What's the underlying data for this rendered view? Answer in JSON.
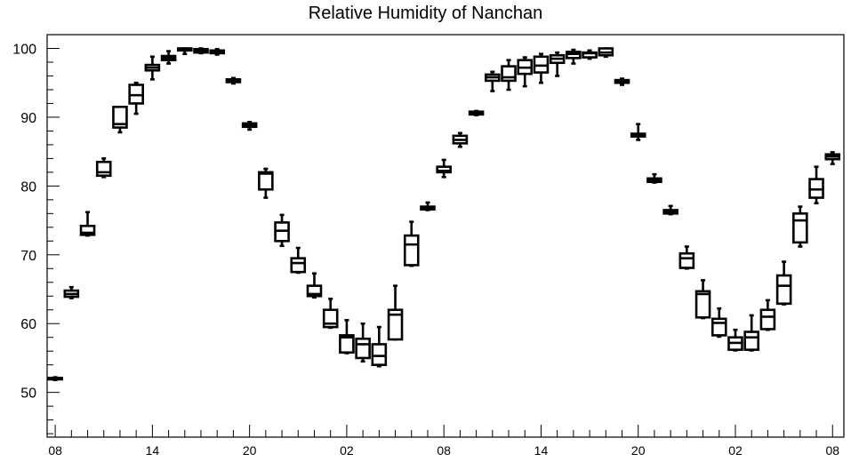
{
  "chart_data": {
    "type": "box",
    "title": "Relative Humidity of Nanchan",
    "xlabel": "",
    "ylabel": "",
    "ylim": [
      43.5,
      102
    ],
    "yticks": [
      50,
      60,
      70,
      80,
      90,
      100
    ],
    "xticks": [
      {
        "x": 0,
        "label": "08"
      },
      {
        "x": 6,
        "label": "14"
      },
      {
        "x": 12,
        "label": "20"
      },
      {
        "x": 18,
        "label": "02"
      },
      {
        "x": 24,
        "label": "08"
      },
      {
        "x": 30,
        "label": "14"
      },
      {
        "x": 36,
        "label": "20"
      },
      {
        "x": 42,
        "label": "02"
      },
      {
        "x": 48,
        "label": "08"
      }
    ],
    "xrange": [
      -0.5,
      48.7
    ],
    "grid": false,
    "boxes": [
      {
        "x": 0,
        "min": 51.8,
        "q1": 51.9,
        "median": 52.0,
        "q3": 52.1,
        "max": 52.2
      },
      {
        "x": 1,
        "min": 63.7,
        "q1": 63.9,
        "median": 64.3,
        "q3": 64.8,
        "max": 65.3
      },
      {
        "x": 2,
        "min": 72.8,
        "q1": 72.9,
        "median": 73.2,
        "q3": 74.2,
        "max": 76.2
      },
      {
        "x": 3,
        "min": 81.3,
        "q1": 81.5,
        "median": 82.0,
        "q3": 83.5,
        "max": 84.0
      },
      {
        "x": 4,
        "min": 87.8,
        "q1": 88.5,
        "median": 89.0,
        "q3": 91.5,
        "max": 91.5
      },
      {
        "x": 5,
        "min": 90.5,
        "q1": 92.0,
        "median": 93.2,
        "q3": 94.7,
        "max": 95.0
      },
      {
        "x": 6,
        "min": 95.5,
        "q1": 96.8,
        "median": 97.2,
        "q3": 97.6,
        "max": 98.8
      },
      {
        "x": 7,
        "min": 97.8,
        "q1": 98.3,
        "median": 98.6,
        "q3": 98.9,
        "max": 99.6
      },
      {
        "x": 8,
        "min": 99.2,
        "q1": 99.7,
        "median": 99.9,
        "q3": 100.0,
        "max": 100.0
      },
      {
        "x": 9,
        "min": 99.3,
        "q1": 99.4,
        "median": 99.6,
        "q3": 99.9,
        "max": 100.0
      },
      {
        "x": 10,
        "min": 99.1,
        "q1": 99.3,
        "median": 99.5,
        "q3": 99.7,
        "max": 99.9
      },
      {
        "x": 11,
        "min": 94.9,
        "q1": 95.1,
        "median": 95.3,
        "q3": 95.5,
        "max": 95.7
      },
      {
        "x": 12,
        "min": 88.2,
        "q1": 88.6,
        "median": 88.9,
        "q3": 89.1,
        "max": 89.3
      },
      {
        "x": 13,
        "min": 78.3,
        "q1": 79.5,
        "median": 81.8,
        "q3": 82.0,
        "max": 82.5
      },
      {
        "x": 14,
        "min": 71.3,
        "q1": 72.0,
        "median": 73.5,
        "q3": 74.7,
        "max": 75.8
      },
      {
        "x": 15,
        "min": 67.4,
        "q1": 67.5,
        "median": 68.8,
        "q3": 69.5,
        "max": 71.0
      },
      {
        "x": 16,
        "min": 63.8,
        "q1": 64.0,
        "median": 64.3,
        "q3": 65.5,
        "max": 67.3
      },
      {
        "x": 17,
        "min": 59.4,
        "q1": 59.5,
        "median": 60.0,
        "q3": 62.0,
        "max": 63.6
      },
      {
        "x": 18,
        "min": 55.7,
        "q1": 55.8,
        "median": 58.0,
        "q3": 58.3,
        "max": 60.5
      },
      {
        "x": 19,
        "min": 54.5,
        "q1": 55.0,
        "median": 57.0,
        "q3": 57.8,
        "max": 60.0
      },
      {
        "x": 20,
        "min": 53.8,
        "q1": 54.0,
        "median": 55.3,
        "q3": 57.0,
        "max": 59.5
      },
      {
        "x": 21,
        "min": 57.7,
        "q1": 57.7,
        "median": 61.3,
        "q3": 62.0,
        "max": 65.5
      },
      {
        "x": 22,
        "min": 68.4,
        "q1": 68.5,
        "median": 71.5,
        "q3": 72.8,
        "max": 74.8
      },
      {
        "x": 23,
        "min": 76.5,
        "q1": 76.6,
        "median": 76.8,
        "q3": 77.0,
        "max": 77.6
      },
      {
        "x": 24,
        "min": 81.3,
        "q1": 82.0,
        "median": 82.2,
        "q3": 82.8,
        "max": 83.8
      },
      {
        "x": 25,
        "min": 85.7,
        "q1": 86.2,
        "median": 86.7,
        "q3": 87.3,
        "max": 87.7
      },
      {
        "x": 26,
        "min": 90.3,
        "q1": 90.4,
        "median": 90.6,
        "q3": 90.8,
        "max": 90.9
      },
      {
        "x": 27,
        "min": 93.8,
        "q1": 95.3,
        "median": 95.8,
        "q3": 96.2,
        "max": 96.6
      },
      {
        "x": 28,
        "min": 94.0,
        "q1": 95.3,
        "median": 95.8,
        "q3": 97.4,
        "max": 98.3
      },
      {
        "x": 29,
        "min": 94.5,
        "q1": 96.3,
        "median": 97.2,
        "q3": 98.3,
        "max": 98.7
      },
      {
        "x": 30,
        "min": 95.0,
        "q1": 96.5,
        "median": 97.5,
        "q3": 98.8,
        "max": 99.2
      },
      {
        "x": 31,
        "min": 96.0,
        "q1": 97.9,
        "median": 98.5,
        "q3": 99.0,
        "max": 99.4
      },
      {
        "x": 32,
        "min": 97.8,
        "q1": 98.6,
        "median": 99.2,
        "q3": 99.5,
        "max": 99.8
      },
      {
        "x": 33,
        "min": 98.5,
        "q1": 98.7,
        "median": 99.3,
        "q3": 99.4,
        "max": 99.7
      },
      {
        "x": 34,
        "min": 98.8,
        "q1": 99.0,
        "median": 99.4,
        "q3": 100.0,
        "max": 100.0
      },
      {
        "x": 35,
        "min": 94.7,
        "q1": 95.0,
        "median": 95.2,
        "q3": 95.4,
        "max": 95.6
      },
      {
        "x": 36,
        "min": 86.7,
        "q1": 87.2,
        "median": 87.5,
        "q3": 87.6,
        "max": 89.0
      },
      {
        "x": 37,
        "min": 80.5,
        "q1": 80.6,
        "median": 80.9,
        "q3": 81.1,
        "max": 81.7
      },
      {
        "x": 38,
        "min": 75.9,
        "q1": 76.0,
        "median": 76.2,
        "q3": 76.5,
        "max": 77.1
      },
      {
        "x": 39,
        "min": 68.0,
        "q1": 68.1,
        "median": 69.5,
        "q3": 70.2,
        "max": 71.2
      },
      {
        "x": 40,
        "min": 60.8,
        "q1": 60.9,
        "median": 64.3,
        "q3": 64.7,
        "max": 66.3
      },
      {
        "x": 41,
        "min": 58.1,
        "q1": 58.3,
        "median": 60.1,
        "q3": 60.7,
        "max": 62.2
      },
      {
        "x": 42,
        "min": 56.1,
        "q1": 56.2,
        "median": 57.2,
        "q3": 58.0,
        "max": 59.1
      },
      {
        "x": 43,
        "min": 56.1,
        "q1": 56.2,
        "median": 58.0,
        "q3": 58.8,
        "max": 61.2
      },
      {
        "x": 44,
        "min": 59.1,
        "q1": 59.2,
        "median": 61.0,
        "q3": 62.0,
        "max": 63.4
      },
      {
        "x": 45,
        "min": 62.8,
        "q1": 62.9,
        "median": 65.5,
        "q3": 67.0,
        "max": 69.0
      },
      {
        "x": 46,
        "min": 71.2,
        "q1": 71.8,
        "median": 75.0,
        "q3": 76.0,
        "max": 77.0
      },
      {
        "x": 47,
        "min": 77.5,
        "q1": 78.3,
        "median": 79.5,
        "q3": 81.0,
        "max": 82.8
      },
      {
        "x": 48,
        "min": 83.2,
        "q1": 83.9,
        "median": 84.3,
        "q3": 84.6,
        "max": 84.9
      }
    ]
  }
}
